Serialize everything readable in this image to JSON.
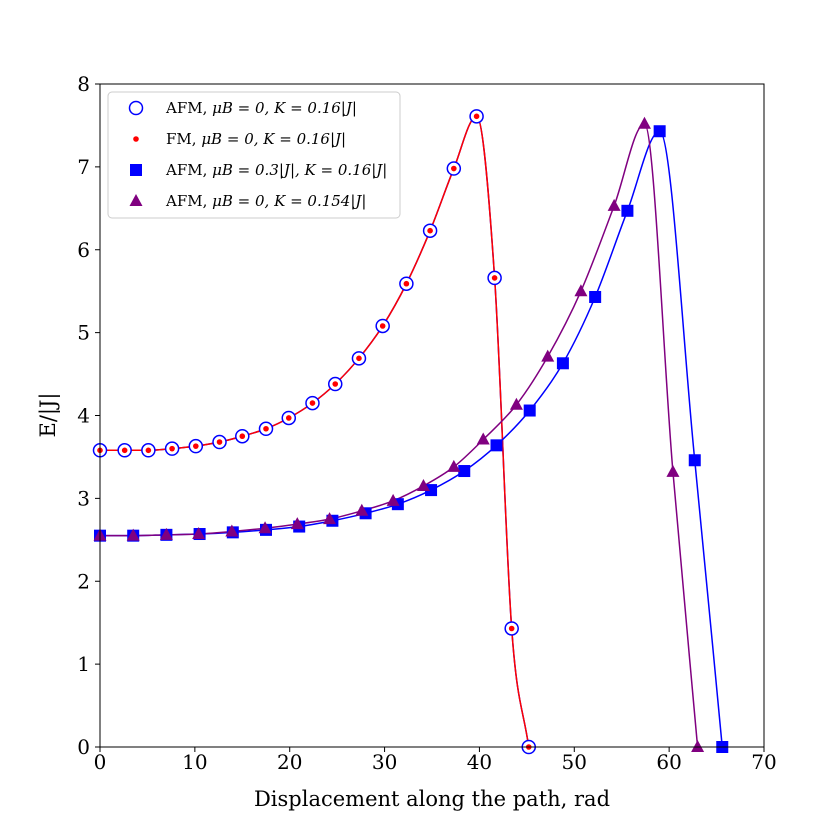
{
  "chart_data": {
    "type": "line",
    "title": "",
    "xlabel": "Displacement along the path, rad",
    "ylabel": "E/|J|",
    "xlim": [
      0,
      70
    ],
    "ylim": [
      0,
      8
    ],
    "xticks": [
      "0",
      "10",
      "20",
      "30",
      "40",
      "50",
      "60",
      "70"
    ],
    "yticks": [
      "0",
      "1",
      "2",
      "3",
      "4",
      "5",
      "6",
      "7",
      "8"
    ],
    "grid": false,
    "legend_position": "top-left",
    "series": [
      {
        "name": "AFM, μB = 0, K = 0.16|J|",
        "legend_prefix": "AFM, ",
        "legend_math": "μB = 0, K = 0.16|J|",
        "marker": "open-circle",
        "color": "#0000ff",
        "x": [
          0,
          2.6,
          5.1,
          7.6,
          10.1,
          12.6,
          15.0,
          17.5,
          19.9,
          22.4,
          24.8,
          27.3,
          29.8,
          32.3,
          34.8,
          37.3,
          39.7,
          41.6,
          43.4,
          45.2
        ],
        "y": [
          3.58,
          3.58,
          3.58,
          3.6,
          3.63,
          3.68,
          3.75,
          3.84,
          3.97,
          4.15,
          4.38,
          4.69,
          5.08,
          5.59,
          6.23,
          6.98,
          7.61,
          5.66,
          1.43,
          0.0
        ]
      },
      {
        "name": "FM, μB = 0, K = 0.16|J|",
        "legend_prefix": "FM, ",
        "legend_math": "μB = 0, K = 0.16|J|",
        "marker": "dot",
        "color": "#ff0000",
        "x": [
          0,
          2.6,
          5.1,
          7.6,
          10.1,
          12.6,
          15.0,
          17.5,
          19.9,
          22.4,
          24.8,
          27.3,
          29.8,
          32.3,
          34.8,
          37.3,
          39.7,
          41.6,
          43.4,
          45.2
        ],
        "y": [
          3.58,
          3.58,
          3.58,
          3.6,
          3.63,
          3.68,
          3.75,
          3.84,
          3.97,
          4.15,
          4.38,
          4.69,
          5.08,
          5.59,
          6.23,
          6.98,
          7.61,
          5.66,
          1.43,
          0.0
        ]
      },
      {
        "name": "AFM, μB = 0.3|J|, K = 0.16|J|",
        "legend_prefix": "AFM, ",
        "legend_math": "μB = 0.3|J|, K = 0.16|J|",
        "marker": "square",
        "color": "#0000ff",
        "x": [
          0,
          3.5,
          7.0,
          10.5,
          14.0,
          17.5,
          21.0,
          24.5,
          28.0,
          31.4,
          34.9,
          38.4,
          41.8,
          45.3,
          48.8,
          52.2,
          55.6,
          59.0,
          62.7,
          65.6
        ],
        "y": [
          2.55,
          2.55,
          2.56,
          2.57,
          2.59,
          2.62,
          2.66,
          2.73,
          2.82,
          2.93,
          3.1,
          3.33,
          3.64,
          4.06,
          4.63,
          5.43,
          6.47,
          7.43,
          3.46,
          0.0
        ]
      },
      {
        "name": "AFM, μB = 0, K = 0.154|J|",
        "legend_prefix": "AFM, ",
        "legend_math": "μB = 0, K = 0.154|J|",
        "marker": "triangle",
        "color": "#800080",
        "x": [
          0,
          3.5,
          7.0,
          10.4,
          13.9,
          17.4,
          20.8,
          24.2,
          27.6,
          30.9,
          34.1,
          37.3,
          40.4,
          43.9,
          47.2,
          50.7,
          54.2,
          57.4,
          60.4,
          63.0
        ],
        "y": [
          2.55,
          2.55,
          2.56,
          2.57,
          2.6,
          2.64,
          2.69,
          2.75,
          2.85,
          2.97,
          3.15,
          3.38,
          3.71,
          4.13,
          4.71,
          5.5,
          6.53,
          7.52,
          3.32,
          0.0
        ]
      }
    ]
  }
}
